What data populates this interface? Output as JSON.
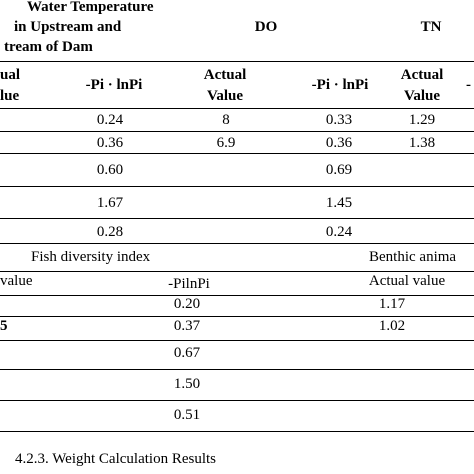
{
  "table1": {
    "header": {
      "water_temp_l1": "Water Temperature",
      "water_temp_l2": "in Upstream and",
      "water_temp_l3": "tream of Dam",
      "do": "DO",
      "tn": "TN"
    },
    "subheader": {
      "actual_frag_l1": "ual",
      "actual_frag_l2": "lue",
      "pi_ln_pi_1": "-Pi · lnPi",
      "actual_value_1_l1": "Actual",
      "actual_value_1_l2": "Value",
      "pi_ln_pi_2": "-Pi · lnPi",
      "actual_value_2_l1": "Actual",
      "actual_value_2_l2": "Value",
      "trailing_dash": "-"
    },
    "rows": [
      {
        "a": "0.24",
        "b": "8",
        "c": "0.33",
        "d": "1.29"
      },
      {
        "a": "0.36",
        "b": "6.9",
        "c": "0.36",
        "d": "1.38"
      },
      {
        "a": "0.60",
        "b": "",
        "c": "0.69",
        "d": ""
      },
      {
        "a": "1.67",
        "b": "",
        "c": "1.45",
        "d": ""
      },
      {
        "a": "0.28",
        "b": "",
        "c": "0.24",
        "d": ""
      }
    ]
  },
  "table2": {
    "header": {
      "fish": "Fish diversity index",
      "benthic": "Benthic anima"
    },
    "subheader": {
      "value_frag": "value",
      "pilnpi": "-PilnPi",
      "actual_value": "Actual value"
    },
    "row_stubs": [
      "",
      "5"
    ],
    "rows": [
      {
        "a": "0.20",
        "b": "1.17"
      },
      {
        "a": "0.37",
        "b": "1.02"
      },
      {
        "a": "0.67",
        "b": ""
      },
      {
        "a": "1.50",
        "b": ""
      },
      {
        "a": "0.51",
        "b": ""
      }
    ]
  },
  "section_heading": "4.2.3. Weight Calculation Results"
}
